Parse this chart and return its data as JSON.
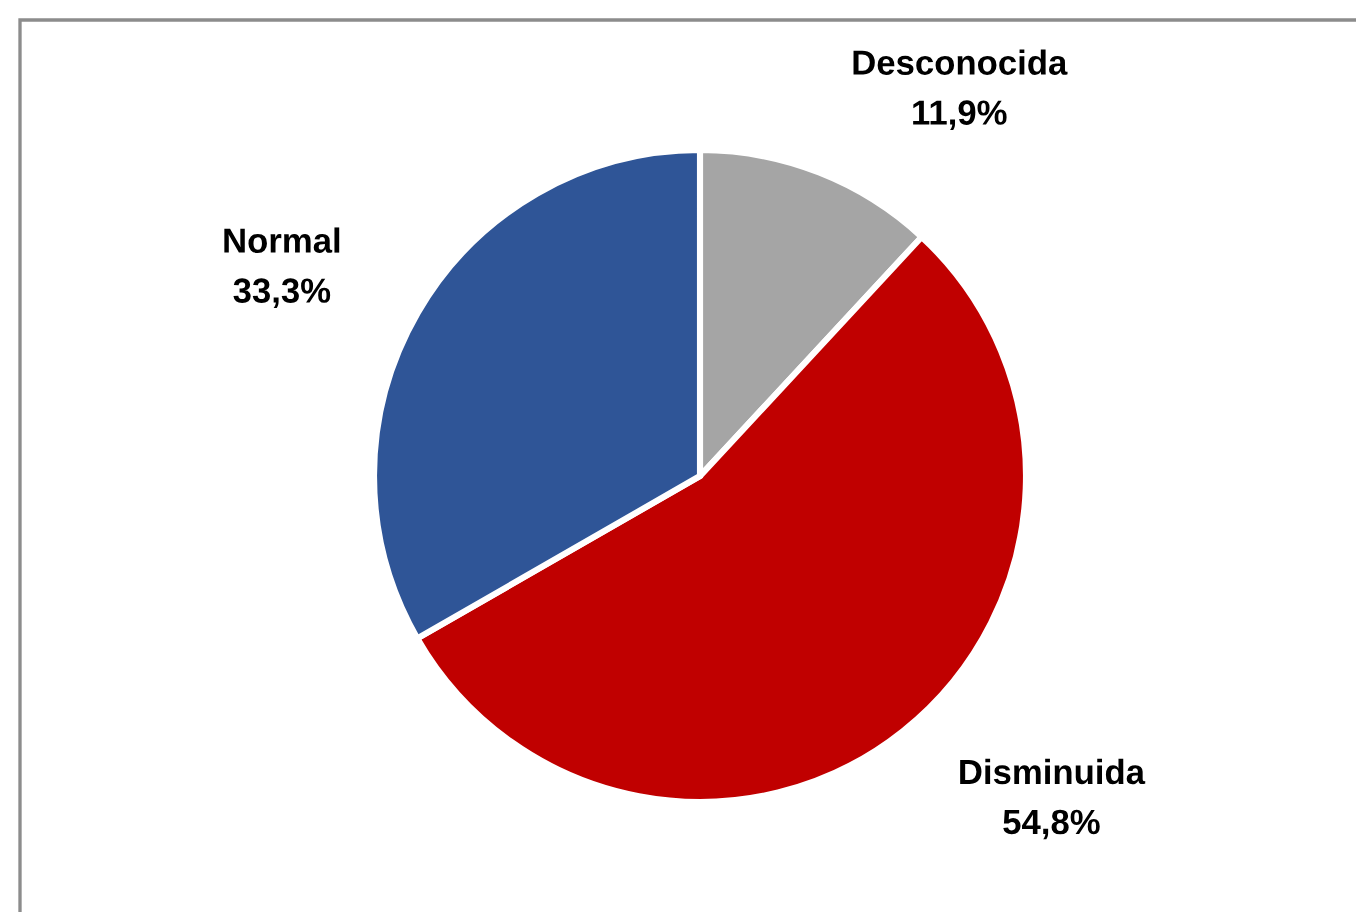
{
  "chart_data": {
    "type": "pie",
    "categories": [
      "Desconocida",
      "Disminuida",
      "Normal"
    ],
    "values": [
      11.9,
      54.8,
      33.3
    ],
    "colors": [
      "#a5a5a5",
      "#c00000",
      "#2f5597"
    ],
    "value_labels": [
      "11,9%",
      "54,8%",
      "33,3%"
    ],
    "legend": false
  }
}
